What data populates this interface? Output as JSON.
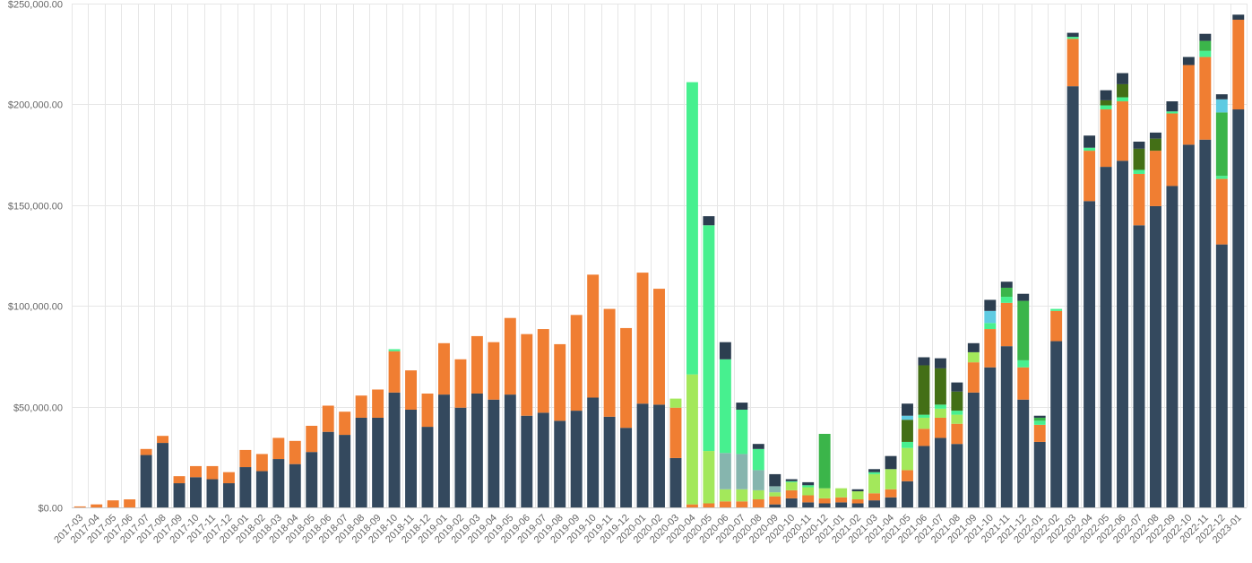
{
  "chart_data": {
    "type": "bar",
    "stacked": true,
    "title": "",
    "xlabel": "",
    "ylabel": "",
    "ylim": [
      0,
      250000
    ],
    "yticks": [
      0,
      50000,
      100000,
      150000,
      200000,
      250000
    ],
    "ytick_labels": [
      "$0.00",
      "$50,000.00",
      "$100,000.00",
      "$150,000.00",
      "$200,000.00",
      "$250,000.00"
    ],
    "grid": true,
    "legend": "none",
    "categories": [
      "2017-03",
      "2017-04",
      "2017-05",
      "2017-06",
      "2017-07",
      "2017-08",
      "2017-09",
      "2017-10",
      "2017-11",
      "2017-12",
      "2018-01",
      "2018-02",
      "2018-03",
      "2018-04",
      "2018-05",
      "2018-06",
      "2018-07",
      "2018-08",
      "2018-09",
      "2018-10",
      "2018-11",
      "2018-12",
      "2019-01",
      "2019-02",
      "2019-03",
      "2019-04",
      "2019-05",
      "2019-06",
      "2019-07",
      "2019-08",
      "2019-09",
      "2019-10",
      "2019-11",
      "2019-12",
      "2020-01",
      "2020-02",
      "2020-03",
      "2020-04",
      "2020-05",
      "2020-06",
      "2020-07",
      "2020-08",
      "2020-09",
      "2020-10",
      "2020-11",
      "2020-12",
      "2021-01",
      "2021-02",
      "2021-03",
      "2021-04",
      "2021-05",
      "2021-06",
      "2021-07",
      "2021-08",
      "2021-09",
      "2021-10",
      "2021-11",
      "2021-12",
      "2022-01",
      "2022-02",
      "2022-03",
      "2022-04",
      "2022-05",
      "2022-06",
      "2022-07",
      "2022-08",
      "2022-09",
      "2022-10",
      "2022-11",
      "2022-12",
      "2023-01"
    ],
    "series": [
      {
        "color": "#34495e",
        "values": [
          0,
          0,
          0,
          0,
          26000,
          32000,
          12000,
          15000,
          14000,
          12000,
          20000,
          18000,
          24000,
          21500,
          27500,
          37500,
          36000,
          44500,
          44500,
          57000,
          48500,
          40000,
          56000,
          49500,
          56500,
          53500,
          56000,
          45500,
          47000,
          43000,
          48000,
          54500,
          45000,
          39500,
          51500,
          51000,
          24500,
          0,
          0,
          0,
          0,
          0,
          1500,
          4500,
          2500,
          2000,
          2500,
          2000,
          3500,
          5000,
          13000,
          30500,
          34500,
          31500,
          57000,
          69500,
          80000,
          53500,
          32500,
          82500,
          209000,
          152000,
          169000,
          172000,
          140000,
          149500,
          159500,
          180000,
          182500,
          130500,
          197500
        ]
      },
      {
        "color": "#f07e32",
        "values": [
          500,
          1500,
          3500,
          4000,
          3000,
          3500,
          3500,
          5500,
          6500,
          5500,
          8500,
          8500,
          10500,
          11500,
          13000,
          13000,
          11500,
          11000,
          14000,
          20500,
          19500,
          16500,
          25500,
          24000,
          28500,
          28500,
          38000,
          40500,
          41500,
          38000,
          47500,
          61000,
          53500,
          49500,
          65000,
          57500,
          25000,
          1500,
          2000,
          3000,
          3000,
          4000,
          4000,
          4000,
          3500,
          2500,
          2500,
          2000,
          3500,
          4000,
          5500,
          8500,
          10000,
          10000,
          15000,
          19000,
          21500,
          16000,
          8500,
          15000,
          23500,
          25000,
          28500,
          29500,
          25500,
          27500,
          36000,
          39500,
          41000,
          32500,
          44500
        ]
      },
      {
        "color": "#a3e85b",
        "values": [
          0,
          0,
          0,
          0,
          0,
          0,
          0,
          0,
          0,
          0,
          0,
          0,
          0,
          0,
          0,
          0,
          0,
          0,
          0,
          0,
          0,
          0,
          0,
          0,
          0,
          0,
          0,
          0,
          0,
          0,
          0,
          0,
          0,
          0,
          0,
          0,
          4500,
          64500,
          26000,
          6000,
          6000,
          4500,
          2000,
          4000,
          4000,
          5000,
          4500,
          4000,
          9500,
          10000,
          11000,
          5500,
          4500,
          4500,
          5000,
          0,
          0,
          0,
          0,
          0,
          0,
          0,
          0,
          0,
          0,
          0,
          0,
          0,
          0,
          0,
          0
        ]
      },
      {
        "color": "#86b5ae",
        "values": [
          0,
          0,
          0,
          0,
          0,
          0,
          0,
          0,
          0,
          0,
          0,
          0,
          0,
          0,
          0,
          0,
          0,
          0,
          0,
          0,
          0,
          0,
          0,
          0,
          0,
          0,
          0,
          0,
          0,
          0,
          0,
          0,
          0,
          0,
          0,
          0,
          0,
          0,
          0,
          18000,
          17500,
          10000,
          3000,
          0,
          0,
          0,
          0,
          0,
          0,
          0,
          0,
          0,
          0,
          0,
          0,
          0,
          0,
          0,
          0,
          0,
          0,
          0,
          0,
          0,
          0,
          0,
          0,
          0,
          0,
          0,
          0
        ]
      },
      {
        "color": "#47f08f",
        "values": [
          0,
          0,
          0,
          0,
          0,
          0,
          0,
          0,
          0,
          0,
          0,
          0,
          0,
          0,
          0,
          0,
          0,
          0,
          0,
          1000,
          0,
          0,
          0,
          0,
          0,
          0,
          0,
          0,
          0,
          0,
          0,
          0,
          0,
          0,
          0,
          0,
          0,
          145000,
          112000,
          46500,
          22000,
          10500,
          0,
          500,
          1000,
          0,
          0,
          0,
          1000,
          0,
          3000,
          1500,
          2000,
          2000,
          0,
          3000,
          3000,
          3500,
          2000,
          1000,
          1000,
          1500,
          2000,
          2000,
          2000,
          0,
          1000,
          0,
          3000,
          1500,
          0
        ]
      },
      {
        "color": "#3bb54a",
        "values": [
          0,
          0,
          0,
          0,
          0,
          0,
          0,
          0,
          0,
          0,
          0,
          0,
          0,
          0,
          0,
          0,
          0,
          0,
          0,
          0,
          0,
          0,
          0,
          0,
          0,
          0,
          0,
          0,
          0,
          0,
          0,
          0,
          0,
          0,
          0,
          0,
          0,
          0,
          0,
          0,
          0,
          0,
          0,
          0,
          0,
          27000,
          0,
          0,
          0,
          0,
          0,
          0,
          0,
          0,
          0,
          0,
          4500,
          29500,
          1500,
          0,
          0,
          0,
          0,
          0,
          0,
          0,
          0,
          0,
          5000,
          31500,
          0
        ]
      },
      {
        "color": "#436f16",
        "values": [
          0,
          0,
          0,
          0,
          0,
          0,
          0,
          0,
          0,
          0,
          0,
          0,
          0,
          0,
          0,
          0,
          0,
          0,
          0,
          0,
          0,
          0,
          0,
          0,
          0,
          0,
          0,
          0,
          0,
          0,
          0,
          0,
          0,
          0,
          0,
          0,
          0,
          0,
          0,
          0,
          0,
          0,
          0,
          0,
          0,
          0,
          0,
          0,
          0,
          0,
          11000,
          24500,
          18000,
          9500,
          0,
          0,
          0,
          0,
          0,
          0,
          0,
          0,
          2500,
          6500,
          10500,
          6000,
          0,
          0,
          0,
          0,
          0
        ]
      },
      {
        "color": "#5fcbe2",
        "values": [
          0,
          0,
          0,
          0,
          0,
          0,
          0,
          0,
          0,
          0,
          0,
          0,
          0,
          0,
          0,
          0,
          0,
          0,
          0,
          0,
          0,
          0,
          0,
          0,
          0,
          0,
          0,
          0,
          0,
          0,
          0,
          0,
          0,
          0,
          0,
          0,
          0,
          0,
          0,
          0,
          0,
          0,
          0,
          0,
          0,
          0,
          0,
          0,
          0,
          0,
          2000,
          0,
          0,
          0,
          0,
          6000,
          0,
          0,
          0,
          0,
          0,
          0,
          0,
          0,
          0,
          0,
          0,
          0,
          0,
          6500,
          0
        ]
      },
      {
        "color": "#2c3e50",
        "values": [
          0,
          0,
          0,
          0,
          0,
          0,
          0,
          0,
          0,
          0,
          0,
          0,
          0,
          0,
          0,
          0,
          0,
          0,
          0,
          0,
          0,
          0,
          0,
          0,
          0,
          0,
          0,
          0,
          0,
          0,
          0,
          0,
          0,
          0,
          0,
          0,
          0,
          0,
          4500,
          8500,
          3500,
          2500,
          6000,
          1000,
          1500,
          0,
          0,
          1000,
          1500,
          6500,
          6000,
          4000,
          5000,
          4500,
          4500,
          5500,
          3000,
          3500,
          1000,
          0,
          2000,
          6000,
          5000,
          5500,
          3500,
          3000,
          5000,
          4000,
          3500,
          2500,
          2500
        ]
      }
    ]
  }
}
